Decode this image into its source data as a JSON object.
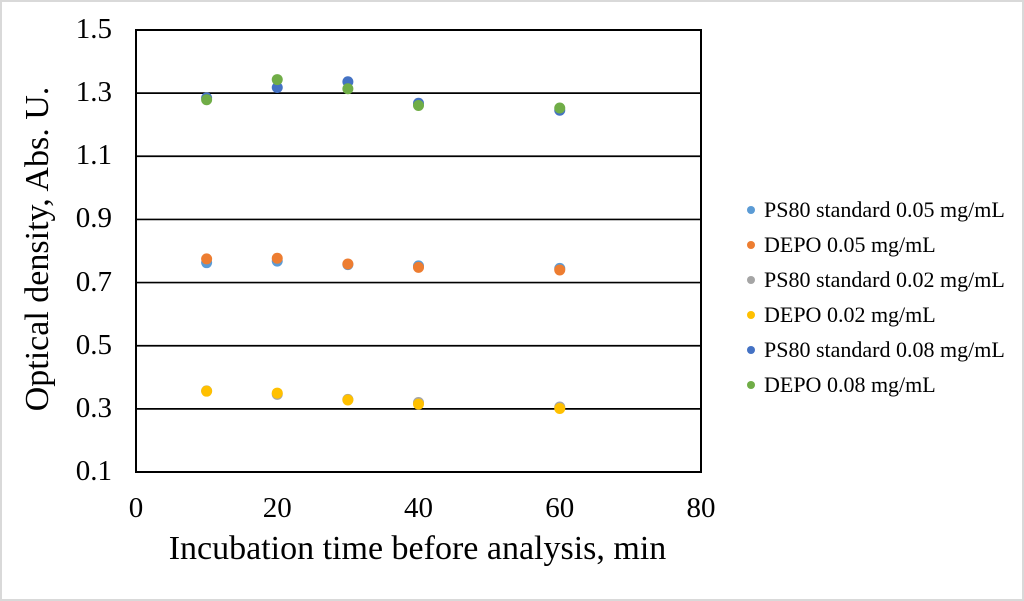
{
  "figure": {
    "background": "#FFFFFF",
    "frame_border_color": "#D9D9D9",
    "gridline_color": "#000000",
    "plot_border_color": "#000000"
  },
  "chart_data": {
    "type": "scatter",
    "title": "",
    "xlabel": "Incubation time before analysis, min",
    "ylabel": "Optical density, Abs. U.",
    "xlim": [
      0,
      80
    ],
    "ylim": [
      0.1,
      1.5
    ],
    "xticks": [
      0,
      20,
      40,
      60,
      80
    ],
    "xtick_labels": [
      "0",
      "20",
      "40",
      "60",
      "80"
    ],
    "yticks": [
      0.1,
      0.3,
      0.5,
      0.7,
      0.9,
      1.1,
      1.3,
      1.5
    ],
    "ytick_labels": [
      "0.1",
      "0.3",
      "0.5",
      "0.7",
      "0.9",
      "1.1",
      "1.3",
      "1.5"
    ],
    "grid": "horizontal",
    "legend_position": "right",
    "x": [
      10,
      20,
      30,
      40,
      60
    ],
    "series": [
      {
        "name": "PS80 standard 0.05 mg/mL",
        "color": "#5B9BD5",
        "values": [
          0.763,
          0.768,
          0.757,
          0.753,
          0.745
        ]
      },
      {
        "name": "DEPO 0.05 mg/mL",
        "color": "#ED7D31",
        "values": [
          0.775,
          0.777,
          0.759,
          0.748,
          0.74
        ]
      },
      {
        "name": "PS80 standard 0.02 mg/mL",
        "color": "#A5A5A5",
        "values": [
          0.357,
          0.346,
          0.33,
          0.32,
          0.306
        ]
      },
      {
        "name": "DEPO 0.02 mg/mL",
        "color": "#FFC000",
        "values": [
          0.356,
          0.35,
          0.328,
          0.315,
          0.301
        ]
      },
      {
        "name": "PS80 standard 0.08 mg/mL",
        "color": "#4472C4",
        "values": [
          1.285,
          1.318,
          1.336,
          1.268,
          1.246
        ]
      },
      {
        "name": "DEPO 0.08 mg/mL",
        "color": "#70AD47",
        "values": [
          1.279,
          1.343,
          1.314,
          1.261,
          1.253
        ]
      }
    ]
  }
}
